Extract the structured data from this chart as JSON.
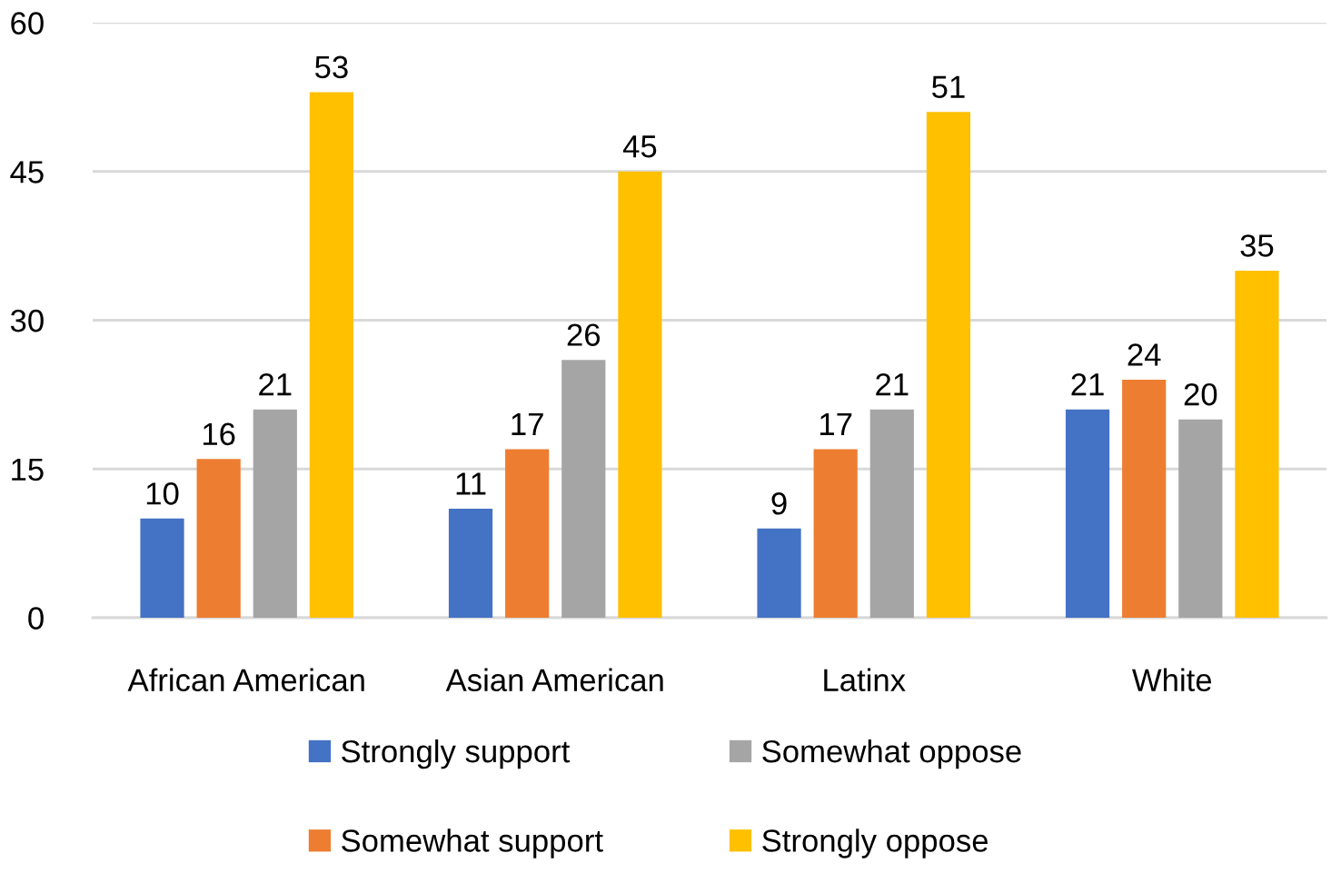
{
  "chart_data": {
    "type": "bar",
    "categories": [
      "African American",
      "Asian American",
      "Latinx",
      "White"
    ],
    "series": [
      {
        "name": "Strongly support",
        "color": "#4472c4",
        "values": [
          10,
          11,
          9,
          21
        ]
      },
      {
        "name": "Somewhat support",
        "color": "#ed7d31",
        "values": [
          16,
          17,
          17,
          24
        ]
      },
      {
        "name": "Somewhat oppose",
        "color": "#a5a5a5",
        "values": [
          21,
          26,
          21,
          20
        ]
      },
      {
        "name": "Strongly oppose",
        "color": "#ffc000",
        "values": [
          53,
          45,
          51,
          35
        ]
      }
    ],
    "ylim": [
      0,
      60
    ],
    "yticks": [
      0,
      15,
      30,
      45,
      60
    ],
    "grid": "y",
    "legend": "bottom",
    "data_labels": true
  }
}
